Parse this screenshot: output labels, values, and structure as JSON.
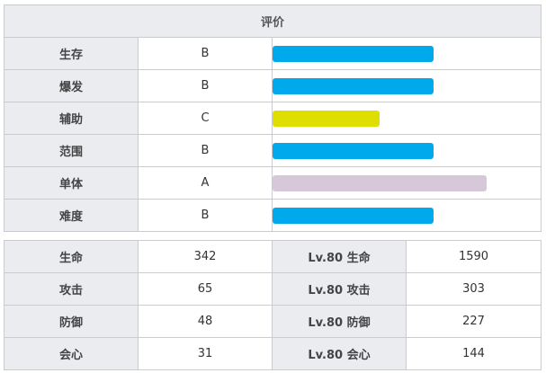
{
  "rating": {
    "header": "评价",
    "rows": [
      {
        "label": "生存",
        "grade": "B",
        "level": 0.6,
        "color": "#00a9ec"
      },
      {
        "label": "爆发",
        "grade": "B",
        "level": 0.6,
        "color": "#00a9ec"
      },
      {
        "label": "辅助",
        "grade": "C",
        "level": 0.4,
        "color": "#dedf00"
      },
      {
        "label": "范围",
        "grade": "B",
        "level": 0.6,
        "color": "#00a9ec"
      },
      {
        "label": "单体",
        "grade": "A",
        "level": 0.8,
        "color": "#d6c8d9"
      },
      {
        "label": "难度",
        "grade": "B",
        "level": 0.6,
        "color": "#00a9ec"
      }
    ]
  },
  "stats": {
    "rows": [
      {
        "label": "生命",
        "value": "342",
        "lv_label": "Lv.80 生命",
        "lv_value": "1590"
      },
      {
        "label": "攻击",
        "value": "65",
        "lv_label": "Lv.80 攻击",
        "lv_value": "303"
      },
      {
        "label": "防御",
        "value": "48",
        "lv_label": "Lv.80 防御",
        "lv_value": "227"
      },
      {
        "label": "会心",
        "value": "31",
        "lv_label": "Lv.80 会心",
        "lv_value": "144"
      }
    ]
  }
}
